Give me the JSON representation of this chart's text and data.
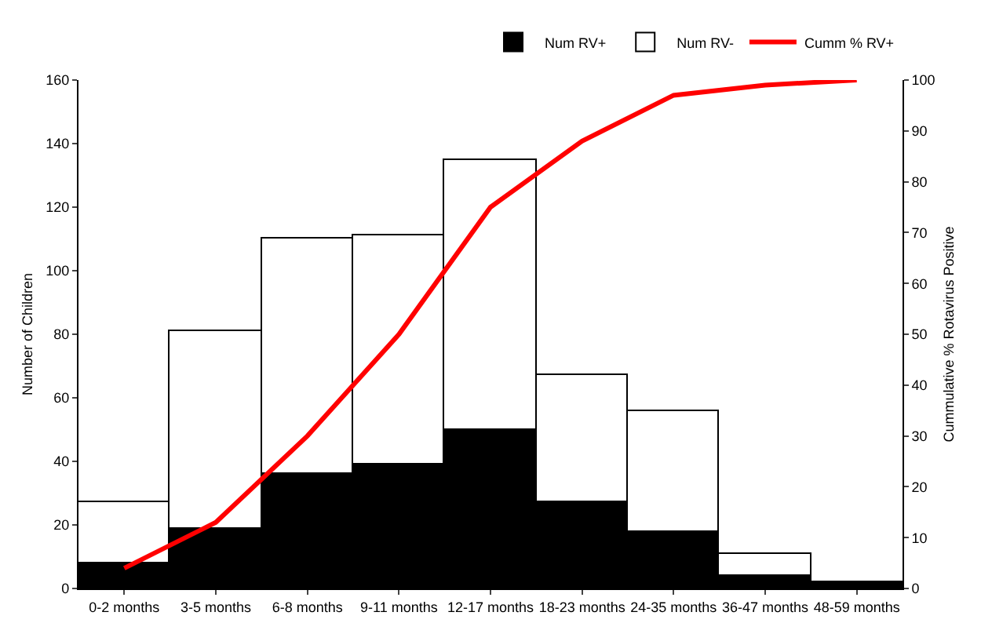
{
  "chart_data": {
    "type": "bar",
    "stacked": true,
    "ylabel": "Number of Children",
    "y2label": "Cummulative % Rotavirus Positive",
    "categories": [
      "0-2 months",
      "3-5 months",
      "6-8 months",
      "9-11 months",
      "12-17 months",
      "18-23 months",
      "24-35 months",
      "36-47 months",
      "48-59 months"
    ],
    "series": [
      {
        "name": "Num RV+",
        "color": "#000000",
        "values": [
          8,
          19,
          36,
          39,
          50,
          27,
          18,
          4,
          2
        ]
      },
      {
        "name": "Num RV-",
        "color": "#ffffff",
        "values": [
          19,
          62,
          74,
          72,
          85,
          40,
          38,
          7,
          0
        ]
      },
      {
        "name": "Cumm % RV+",
        "type": "line",
        "axis": "y2",
        "color": "#ff0000",
        "values": [
          4,
          13,
          30,
          50,
          75,
          88,
          97,
          99,
          100
        ]
      }
    ],
    "ylim": [
      0,
      160
    ],
    "yticks": [
      0,
      20,
      40,
      60,
      80,
      100,
      120,
      140,
      160
    ],
    "y2lim": [
      0,
      100
    ],
    "y2ticks": [
      0,
      10,
      20,
      30,
      40,
      50,
      60,
      70,
      80,
      90,
      100
    ],
    "grid": false,
    "legend": "top right",
    "marker": "none"
  }
}
